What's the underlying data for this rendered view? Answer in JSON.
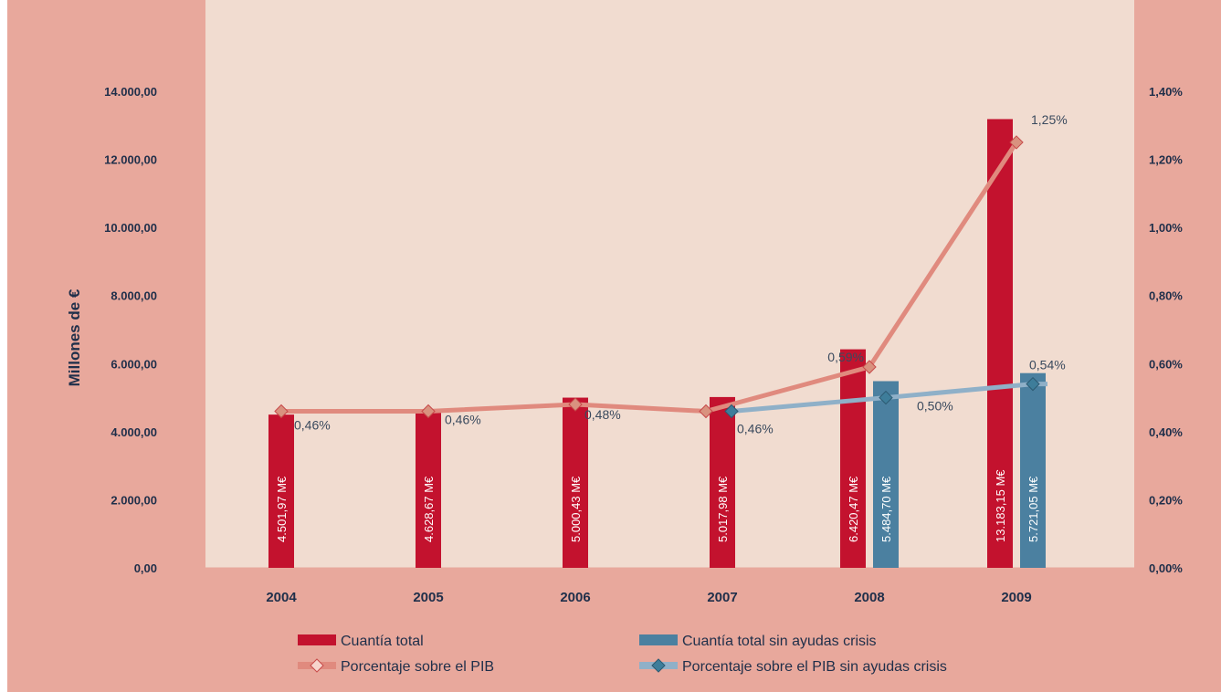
{
  "chart_data": {
    "type": "bar",
    "categories": [
      "2004",
      "2005",
      "2006",
      "2007",
      "2008",
      "2009"
    ],
    "ylabel": "Millones de €",
    "ylim": [
      0,
      14000
    ],
    "y2lim": [
      0,
      1.4
    ],
    "y_ticks": [
      "0,00",
      "2.000,00",
      "4.000,00",
      "6.000,00",
      "8.000,00",
      "10.000,00",
      "12.000,00",
      "14.000,00"
    ],
    "y2_ticks": [
      "0,00%",
      "0,20%",
      "0,40%",
      "0,60%",
      "0,80%",
      "1,00%",
      "1,20%",
      "1,40%"
    ],
    "series": [
      {
        "name": "Cuantía total",
        "kind": "bar",
        "axis": "left",
        "color": "#c3122e",
        "values": [
          4501.97,
          4628.67,
          5000.43,
          5017.98,
          6420.47,
          13183.15
        ],
        "labels": [
          "4.501,97 M€",
          "4.628,67 M€",
          "5.000,43 M€",
          "5.017,98 M€",
          "6.420,47 M€",
          "13.183,15 M€"
        ]
      },
      {
        "name": "Cuantía total sin ayudas crisis",
        "kind": "bar",
        "axis": "left",
        "color": "#4b80a0",
        "values": [
          null,
          null,
          null,
          null,
          5484.7,
          5721.05
        ],
        "labels": [
          null,
          null,
          null,
          null,
          "5.484,70 M€",
          "5.721,05 M€"
        ]
      },
      {
        "name": "Porcentaje sobre el PIB",
        "kind": "line",
        "axis": "right",
        "color": "#e08a7e",
        "values": [
          0.46,
          0.46,
          0.48,
          0.46,
          0.59,
          1.25
        ],
        "labels": [
          "0,46%",
          "0,46%",
          "0,48%",
          "",
          "0,59%",
          "1,25%"
        ]
      },
      {
        "name": "Porcentaje sobre el PIB sin ayudas crisis",
        "kind": "line",
        "axis": "right",
        "color": "#8fb0c8",
        "values": [
          null,
          null,
          null,
          0.46,
          0.5,
          0.54
        ],
        "labels": [
          null,
          null,
          null,
          "0,46%",
          "0,50%",
          "0,54%"
        ]
      }
    ],
    "legend": "bottom",
    "grid": false
  },
  "colors": {
    "frame": "#e8a89c",
    "plot_bg": "#f1dcd0",
    "line_pib_marker": "#d9927f",
    "line_sin_marker": "#3e7d9a"
  }
}
